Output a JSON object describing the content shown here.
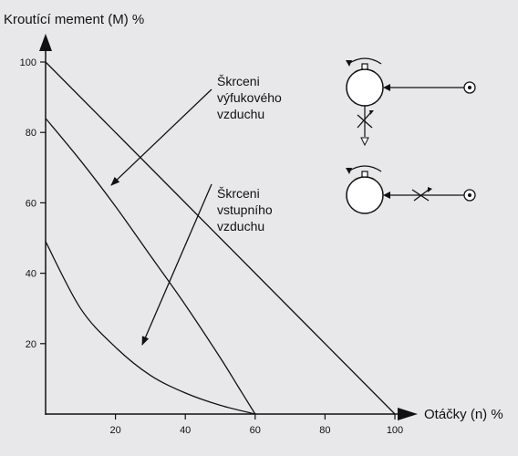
{
  "chart_data": {
    "type": "line",
    "ylabel": "Kroutící mement (M) %",
    "xlabel": "Otáčky (n) %",
    "xlim": [
      0,
      100
    ],
    "ylim": [
      0,
      100
    ],
    "x_ticks": [
      20,
      40,
      60,
      80,
      100
    ],
    "y_ticks": [
      20,
      40,
      60,
      80,
      100
    ],
    "grid": false,
    "series": [
      {
        "x": [
          0,
          25,
          50,
          75,
          100
        ],
        "y": [
          100,
          75,
          50,
          25,
          0
        ]
      },
      {
        "x": [
          0,
          10,
          20,
          30,
          40,
          50,
          55,
          60
        ],
        "y": [
          84,
          72,
          59,
          45,
          31,
          16,
          8,
          0
        ]
      },
      {
        "x": [
          0,
          10,
          20,
          30,
          40,
          50,
          60
        ],
        "y": [
          49,
          30,
          19,
          11,
          6,
          2.5,
          0
        ]
      }
    ],
    "annotations": [
      {
        "lines": [
          "Škrceni",
          "výfukového",
          "vzduchu"
        ]
      },
      {
        "lines": [
          "Škrceni",
          "vstupního",
          "vzduchu"
        ]
      }
    ]
  },
  "colors": {
    "background": "#e8e8ea",
    "ink": "#111111",
    "indicator_fill": "#ffffff"
  },
  "icons": [
    "exhaust-throttle-schematic-icon",
    "intake-throttle-schematic-icon"
  ]
}
